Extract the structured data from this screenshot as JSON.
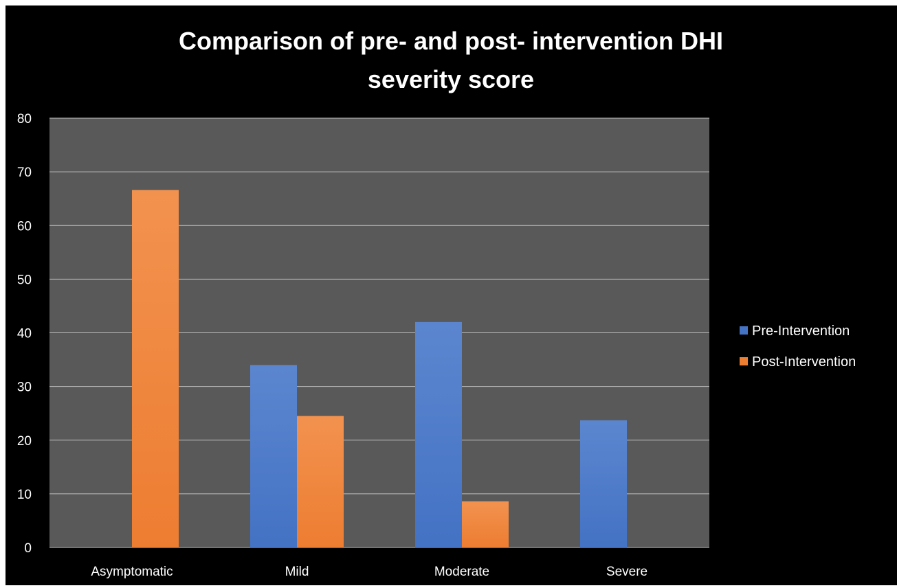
{
  "chart_data": {
    "type": "bar",
    "title": "Comparison of pre- and post- intervention DHI severity score",
    "title_lines": [
      "Comparison of pre- and post- intervention DHI",
      "severity score"
    ],
    "categories": [
      "Asymptomatic",
      "Mild",
      "Moderate",
      "Severe"
    ],
    "series": [
      {
        "name": "Pre-Intervention",
        "values": [
          0,
          34,
          42,
          23.7
        ],
        "color": "#4472C4"
      },
      {
        "name": "Post-Intervention",
        "values": [
          66.6,
          24.5,
          8.6,
          0
        ],
        "color": "#ED7D31"
      }
    ],
    "xlabel": "",
    "ylabel": "",
    "ylim": [
      0,
      80
    ],
    "yticks": [
      0,
      10,
      20,
      30,
      40,
      50,
      60,
      70,
      80
    ],
    "grid": true,
    "legend_position": "right",
    "background": "#000000",
    "plot_background": "#595959"
  }
}
